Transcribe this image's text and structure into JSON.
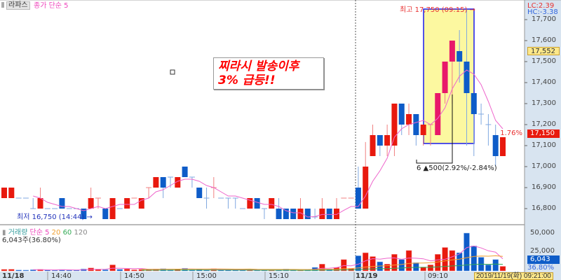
{
  "header": {
    "symbol_button": "라파스",
    "ma_legend": "종가 단순 5"
  },
  "annotation_text": {
    "line1": "찌라시 발송이후",
    "line2": "3% 급등!!"
  },
  "markers": {
    "high": "최고 17,750 (09:15) →",
    "low": "최저 16,750 (14:44) →",
    "range": "6 ▲500(2.92%/-2.84%)"
  },
  "price_axis": {
    "lc": "LC:2.39",
    "hc": "HC:-3.38",
    "ticks": [
      "17,700",
      "17,600",
      "17,500",
      "17,400",
      "17,300",
      "17,200",
      "17,100",
      "17,000",
      "16,900",
      "16,800"
    ],
    "cursor_price": "17,552",
    "current_price": "17,150",
    "current_change": "1.76%"
  },
  "volume_panel": {
    "title": "거래량",
    "ma5": "단순 5",
    "ma20": "20",
    "ma60": "60",
    "ma120": "120",
    "summary": "6,043주(36.80%)",
    "ticks": [
      "50,000",
      "25,000"
    ],
    "current": "6,043",
    "current_pct": "36.80%"
  },
  "time_axis": {
    "labels": [
      "11/18",
      "14:40",
      "14:50",
      "15:00",
      "15:10",
      "11/19",
      "09:10"
    ],
    "cursor_time": "2019/11/19(화) 09:21:00"
  },
  "colors": {
    "up": "#e8190e",
    "down": "#0e5cc8",
    "ma5": "#ee66cc",
    "ma20": "#f0a030",
    "ma60": "#33aa55",
    "highlight": "#fcf8a0",
    "axis_bg": "#d8e4f0"
  },
  "chart_data": {
    "type": "candlestick",
    "ylim": [
      16750,
      17750
    ],
    "candles": [
      [
        16850,
        16900,
        16900,
        16850
      ],
      [
        16850,
        16900,
        16900,
        16850
      ],
      [
        16850,
        16850,
        16850,
        16850
      ],
      [
        16850,
        16850,
        16850,
        16850
      ],
      [
        16800,
        16800,
        16850,
        16800
      ],
      [
        16800,
        16850,
        16900,
        16800
      ],
      [
        16800,
        16800,
        16800,
        16800
      ],
      [
        16800,
        16800,
        16800,
        16800
      ],
      [
        16850,
        16800,
        16850,
        16800
      ],
      [
        16800,
        16800,
        16800,
        16800
      ],
      [
        16800,
        16800,
        16800,
        16800
      ],
      [
        16800,
        16750,
        16800,
        16750
      ],
      [
        16800,
        16850,
        16900,
        16800
      ],
      [
        16850,
        16850,
        16850,
        16800,
        1
      ],
      [
        16800,
        16750,
        16800,
        16750
      ],
      [
        16750,
        16850,
        16850,
        16750
      ],
      [
        16800,
        16800,
        16800,
        16800
      ],
      [
        16800,
        16850,
        16850,
        16800
      ],
      [
        16850,
        16850,
        16850,
        16850,
        1
      ],
      [
        16800,
        16850,
        16850,
        16800
      ],
      [
        16900,
        16900,
        16900,
        16850,
        1
      ],
      [
        16900,
        16950,
        16950,
        16900
      ],
      [
        16950,
        16900,
        16950,
        16850
      ],
      [
        16950,
        16950,
        16950,
        16900
      ],
      [
        16900,
        16950,
        16950,
        16900
      ],
      [
        17000,
        16950,
        17000,
        16950
      ],
      [
        16950,
        16950,
        16950,
        16900
      ],
      [
        16900,
        16850,
        16900,
        16850
      ],
      [
        16850,
        16850,
        16900,
        16800
      ],
      [
        16900,
        16900,
        16950,
        16850,
        1
      ],
      [
        16850,
        16850,
        16850,
        16850
      ],
      [
        16850,
        16850,
        16850,
        16800
      ],
      [
        16850,
        16850,
        16850,
        16800
      ],
      [
        16800,
        16800,
        16800,
        16800
      ],
      [
        16800,
        16850,
        16850,
        16800
      ],
      [
        16850,
        16800,
        16850,
        16800
      ],
      [
        16800,
        16800,
        16800,
        16750
      ],
      [
        16800,
        16850,
        16850,
        16800
      ],
      [
        16800,
        16750,
        16850,
        16750
      ],
      [
        16800,
        16750,
        16800,
        16750
      ],
      [
        16800,
        16750,
        16800,
        16750
      ],
      [
        16750,
        16800,
        16850,
        16750
      ],
      [
        16800,
        16750,
        16800,
        16750
      ],
      [
        16760,
        16760,
        16800,
        16750
      ],
      [
        16750,
        16800,
        16850,
        16750
      ],
      [
        16800,
        16750,
        16800,
        16750
      ],
      [
        16750,
        16800,
        16850,
        16750
      ],
      [
        16850,
        16850,
        16850,
        16850,
        1
      ],
      [
        16850,
        16850,
        16850,
        16850,
        1
      ],
      [
        16900,
        16800,
        17000,
        16800
      ],
      [
        16800,
        17000,
        17117,
        16800
      ],
      [
        17050,
        17150,
        17200,
        17050
      ],
      [
        17150,
        17100,
        17150,
        17050
      ],
      [
        17100,
        17150,
        17200,
        17050
      ],
      [
        17100,
        17300,
        17300,
        17050
      ],
      [
        17300,
        17200,
        17300,
        17150
      ],
      [
        17200,
        17250,
        17300,
        17150
      ],
      [
        17250,
        17150,
        17250,
        17100
      ],
      [
        17150,
        17200,
        17200,
        17100
      ],
      [
        17200,
        17200,
        17200,
        17100,
        1
      ],
      [
        17150,
        17350,
        17350,
        17150
      ],
      [
        17350,
        17500,
        17500,
        17300
      ],
      [
        17500,
        17600,
        17600,
        17300
      ],
      [
        17550,
        17500,
        17650,
        17400
      ],
      [
        17500,
        17350,
        17750,
        17100
      ],
      [
        17350,
        17250,
        17350,
        17050
      ],
      [
        17250,
        17250,
        17300,
        17200
      ],
      [
        17200,
        17200,
        17250,
        17100
      ],
      [
        17150,
        17050,
        17200,
        17000
      ],
      [
        17050,
        17150,
        17150,
        17050
      ]
    ],
    "volume": [
      2000,
      2200,
      1200,
      1000,
      1500,
      2000,
      1200,
      1000,
      1800,
      1000,
      1200,
      2500,
      4000,
      2000,
      1500,
      8000,
      2000,
      2500,
      1500,
      2000,
      2000,
      2500,
      3000,
      1500,
      2500,
      3500,
      1500,
      2000,
      1200,
      3000,
      1500,
      1200,
      1500,
      2000,
      2500,
      1200,
      1000,
      2000,
      1500,
      2500,
      1500,
      800,
      1500,
      4600,
      9000,
      2000,
      4600,
      15000,
      3000,
      20000,
      24000,
      19000,
      12000,
      9000,
      22000,
      15000,
      27000,
      11000,
      5000,
      8000,
      22000,
      31000,
      27000,
      24000,
      50000,
      33000,
      18000,
      8000,
      15000,
      6043
    ],
    "volume_ylim": [
      0,
      50000
    ]
  }
}
